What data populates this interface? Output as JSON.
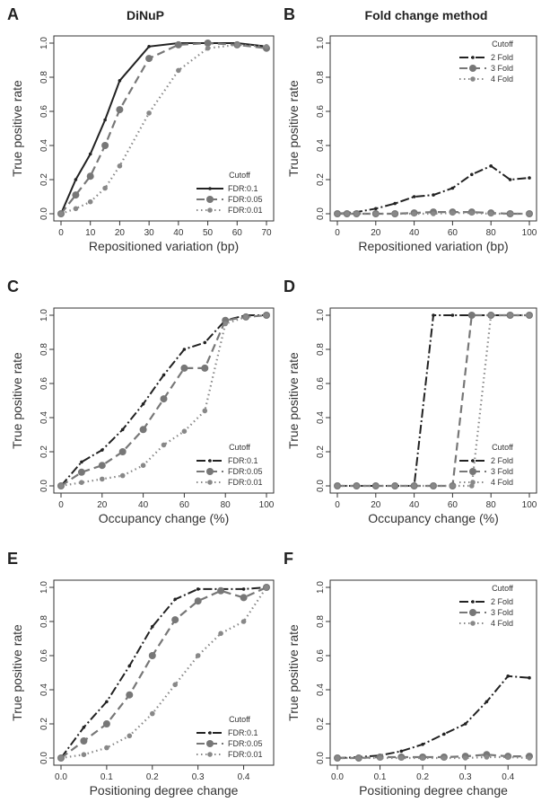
{
  "figure": {
    "col_titles": [
      "DiNuP",
      "Fold change method"
    ]
  },
  "chart_data": [
    {
      "panel": "A",
      "type": "line",
      "xlabel": "Repositioned variation (bp)",
      "ylabel": "True positive rate",
      "xlim": [
        0,
        70
      ],
      "ylim": [
        0,
        1
      ],
      "xticks": [
        0,
        10,
        20,
        30,
        40,
        50,
        60,
        70
      ],
      "yticks": [
        0.0,
        0.2,
        0.4,
        0.6,
        0.8,
        1.0
      ],
      "legend": {
        "title": "Cutoff",
        "position": "bottom-right"
      },
      "x": [
        0,
        5,
        10,
        15,
        20,
        30,
        40,
        50,
        60,
        70
      ],
      "series": [
        {
          "name": "FDR:0.1",
          "values": [
            0,
            0.2,
            0.35,
            0.55,
            0.78,
            0.98,
            1.0,
            1.0,
            1.0,
            0.98
          ],
          "style": "solid",
          "marker": "small",
          "color": "#222222"
        },
        {
          "name": "FDR:0.05",
          "values": [
            0,
            0.11,
            0.22,
            0.4,
            0.61,
            0.91,
            0.99,
            1.0,
            0.99,
            0.97
          ],
          "style": "dashed",
          "marker": "large",
          "color": "#777777"
        },
        {
          "name": "FDR:0.01",
          "values": [
            0,
            0.03,
            0.07,
            0.15,
            0.28,
            0.59,
            0.84,
            0.97,
            0.99,
            0.98
          ],
          "style": "dotted",
          "marker": "medium",
          "color": "#888888"
        }
      ]
    },
    {
      "panel": "B",
      "type": "line",
      "xlabel": "Repositioned variation (bp)",
      "ylabel": "True positive rate",
      "xlim": [
        0,
        100
      ],
      "ylim": [
        0,
        1
      ],
      "xticks": [
        0,
        20,
        40,
        60,
        80,
        100
      ],
      "yticks": [
        0.0,
        0.2,
        0.4,
        0.6,
        0.8,
        1.0
      ],
      "legend": {
        "title": "Cutoff",
        "position": "top-right"
      },
      "x": [
        0,
        5,
        10,
        20,
        30,
        40,
        50,
        60,
        70,
        80,
        90,
        100
      ],
      "series": [
        {
          "name": "2 Fold",
          "values": [
            0,
            0.005,
            0.01,
            0.03,
            0.06,
            0.1,
            0.11,
            0.15,
            0.23,
            0.28,
            0.2,
            0.21
          ],
          "style": "dashdot",
          "marker": "small",
          "color": "#222222"
        },
        {
          "name": "3 Fold",
          "values": [
            0,
            0,
            0,
            0,
            0,
            0.005,
            0.01,
            0.01,
            0.01,
            0.005,
            0,
            0
          ],
          "style": "dashed",
          "marker": "large",
          "color": "#777777"
        },
        {
          "name": "4 Fold",
          "values": [
            0,
            0,
            0,
            0,
            0,
            0,
            0,
            0.005,
            0.005,
            0,
            0,
            0
          ],
          "style": "dotted",
          "marker": "medium",
          "color": "#888888"
        }
      ]
    },
    {
      "panel": "C",
      "type": "line",
      "xlabel": "Occupancy change (%)",
      "ylabel": "True positive rate",
      "xlim": [
        0,
        100
      ],
      "ylim": [
        0,
        1
      ],
      "xticks": [
        0,
        20,
        40,
        60,
        80,
        100
      ],
      "yticks": [
        0.0,
        0.2,
        0.4,
        0.6,
        0.8,
        1.0
      ],
      "legend": {
        "title": "Cutoff",
        "position": "bottom-right"
      },
      "x": [
        0,
        10,
        20,
        30,
        40,
        50,
        60,
        70,
        80,
        90,
        100
      ],
      "series": [
        {
          "name": "FDR:0.1",
          "values": [
            0,
            0.14,
            0.21,
            0.33,
            0.48,
            0.65,
            0.8,
            0.84,
            0.97,
            1.0,
            1.0
          ],
          "style": "dashdot",
          "marker": "small",
          "color": "#222222"
        },
        {
          "name": "FDR:0.05",
          "values": [
            0,
            0.08,
            0.12,
            0.2,
            0.33,
            0.51,
            0.69,
            0.69,
            0.97,
            0.99,
            1.0
          ],
          "style": "dashed",
          "marker": "large",
          "color": "#777777"
        },
        {
          "name": "FDR:0.01",
          "values": [
            0,
            0.02,
            0.04,
            0.06,
            0.12,
            0.24,
            0.32,
            0.44,
            0.95,
            0.99,
            1.0
          ],
          "style": "dotted",
          "marker": "medium",
          "color": "#888888"
        }
      ]
    },
    {
      "panel": "D",
      "type": "line",
      "xlabel": "Occupancy change (%)",
      "ylabel": "True positive rate",
      "xlim": [
        0,
        100
      ],
      "ylim": [
        0,
        1
      ],
      "xticks": [
        0,
        20,
        40,
        60,
        80,
        100
      ],
      "yticks": [
        0.0,
        0.2,
        0.4,
        0.6,
        0.8,
        1.0
      ],
      "legend": {
        "title": "Cutoff",
        "position": "bottom-right"
      },
      "x": [
        0,
        10,
        20,
        30,
        40,
        50,
        60,
        70,
        80,
        90,
        100
      ],
      "series": [
        {
          "name": "2 Fold",
          "values": [
            0,
            0,
            0,
            0,
            0,
            1,
            1,
            1,
            1,
            1,
            1
          ],
          "style": "dashdot",
          "marker": "small",
          "color": "#222222"
        },
        {
          "name": "3 Fold",
          "values": [
            0,
            0,
            0,
            0,
            0,
            0,
            0,
            1,
            1,
            1,
            1
          ],
          "style": "dashed",
          "marker": "large",
          "color": "#777777"
        },
        {
          "name": "4 Fold",
          "values": [
            0,
            0,
            0,
            0,
            0,
            0,
            0,
            0,
            1,
            1,
            1
          ],
          "style": "dotted",
          "marker": "medium",
          "color": "#888888"
        }
      ]
    },
    {
      "panel": "E",
      "type": "line",
      "xlabel": "Positioning degree change",
      "ylabel": "True positive rate",
      "xlim": [
        0,
        0.45
      ],
      "ylim": [
        0,
        1
      ],
      "xticks": [
        0.0,
        0.1,
        0.2,
        0.3,
        0.4
      ],
      "yticks": [
        0.0,
        0.2,
        0.4,
        0.6,
        0.8,
        1.0
      ],
      "legend": {
        "title": "Cutoff",
        "position": "bottom-right"
      },
      "x": [
        0,
        0.05,
        0.1,
        0.15,
        0.2,
        0.25,
        0.3,
        0.35,
        0.4,
        0.45
      ],
      "series": [
        {
          "name": "FDR:0.1",
          "values": [
            0,
            0.18,
            0.33,
            0.54,
            0.77,
            0.93,
            0.99,
            0.99,
            0.99,
            1.0
          ],
          "style": "dashdot",
          "marker": "small",
          "color": "#222222"
        },
        {
          "name": "FDR:0.05",
          "values": [
            0,
            0.1,
            0.2,
            0.37,
            0.6,
            0.81,
            0.92,
            0.98,
            0.94,
            1.0
          ],
          "style": "dashed",
          "marker": "large",
          "color": "#777777"
        },
        {
          "name": "FDR:0.01",
          "values": [
            0,
            0.02,
            0.06,
            0.13,
            0.26,
            0.43,
            0.6,
            0.73,
            0.8,
            1.0
          ],
          "style": "dotted",
          "marker": "medium",
          "color": "#888888"
        }
      ]
    },
    {
      "panel": "F",
      "type": "line",
      "xlabel": "Positioning degree change",
      "ylabel": "True positive rate",
      "xlim": [
        0,
        0.45
      ],
      "ylim": [
        0,
        1
      ],
      "xticks": [
        0.0,
        0.1,
        0.2,
        0.3,
        0.4
      ],
      "yticks": [
        0.0,
        0.2,
        0.4,
        0.6,
        0.8,
        1.0
      ],
      "legend": {
        "title": "Cutoff",
        "position": "top-right"
      },
      "x": [
        0,
        0.05,
        0.1,
        0.15,
        0.2,
        0.25,
        0.3,
        0.35,
        0.4,
        0.45
      ],
      "series": [
        {
          "name": "2 Fold",
          "values": [
            0,
            0.005,
            0.015,
            0.04,
            0.08,
            0.14,
            0.2,
            0.33,
            0.48,
            0.47
          ],
          "style": "dashdot",
          "marker": "small",
          "color": "#222222"
        },
        {
          "name": "3 Fold",
          "values": [
            0,
            0,
            0.005,
            0.005,
            0.005,
            0.005,
            0.01,
            0.02,
            0.01,
            0.01
          ],
          "style": "dashed",
          "marker": "large",
          "color": "#777777"
        },
        {
          "name": "4 Fold",
          "values": [
            0,
            0,
            0,
            0,
            0,
            0,
            0,
            0.005,
            0.005,
            0
          ],
          "style": "dotted",
          "marker": "medium",
          "color": "#888888"
        }
      ]
    }
  ]
}
